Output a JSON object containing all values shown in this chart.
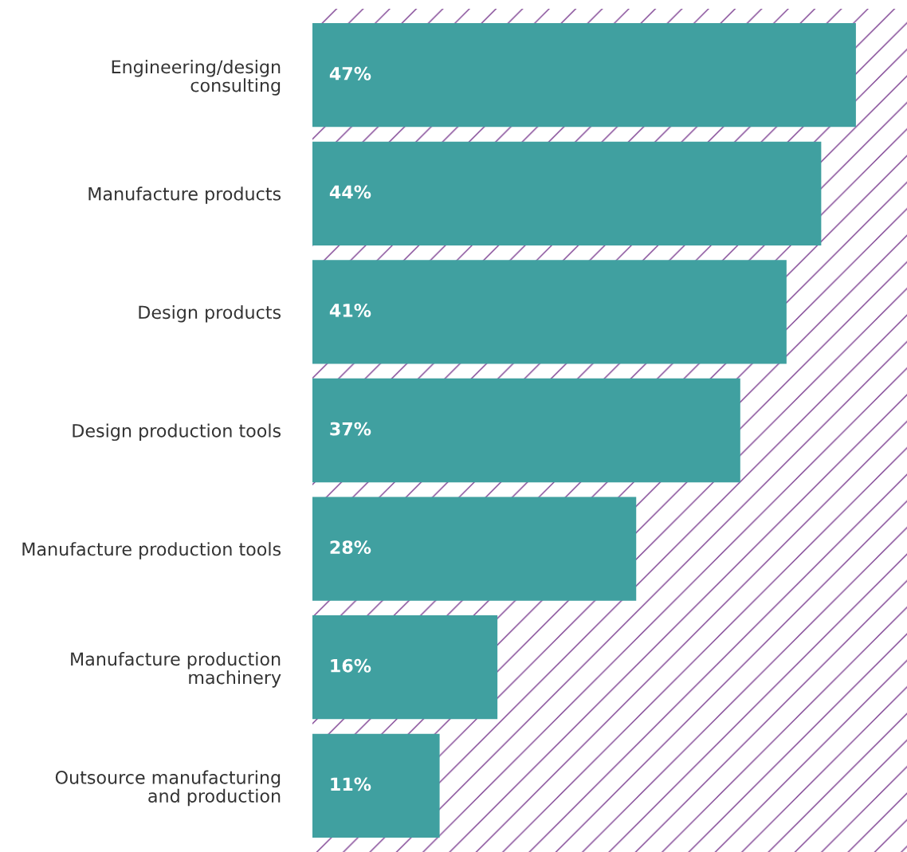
{
  "chart_data": {
    "type": "bar",
    "orientation": "horizontal",
    "categories": [
      "Engineering/design\nconsulting",
      "Manufacture products",
      "Design products",
      "Design production tools",
      "Manufacture production tools",
      "Manufacture production\nmachinery",
      "Outsource manufacturing\nand production"
    ],
    "values": [
      47,
      44,
      41,
      37,
      28,
      16,
      11
    ],
    "value_labels": [
      "47%",
      "44%",
      "41%",
      "37%",
      "28%",
      "16%",
      "11%"
    ],
    "color": "#40a0a0",
    "grid": false,
    "legend": false
  }
}
